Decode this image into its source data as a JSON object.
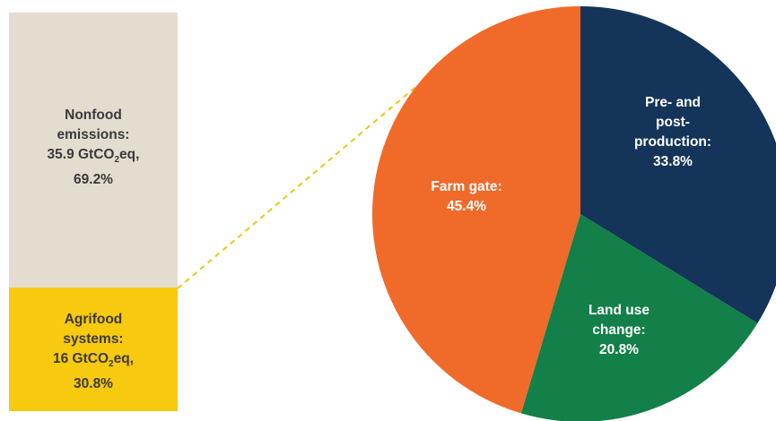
{
  "chart_data": [
    {
      "type": "bar",
      "categories": [
        "Agrifood systems",
        "Nonfood emissions"
      ],
      "values": [
        30.8,
        69.2
      ],
      "unit": "%",
      "stacked": true,
      "colors": [
        "#f7c90f",
        "#e3ddd0"
      ],
      "segments": [
        {
          "name": "Nonfood emissions",
          "value_gtco2eq": 35.9,
          "percent": 69.2,
          "color": "#e3ddd0",
          "label": {
            "l1": "Nonfood",
            "l2": "emissions:",
            "l3a": "35.9 GtCO",
            "l3sub": "2",
            "l3b": "eq,",
            "l4": "69.2%"
          }
        },
        {
          "name": "Agrifood systems",
          "value_gtco2eq": 16,
          "percent": 30.8,
          "color": "#f7c90f",
          "label": {
            "l1": "Agrifood",
            "l2": "systems:",
            "l3a": "16 GtCO",
            "l3sub": "2",
            "l3b": "eq,",
            "l4": "30.8%"
          }
        }
      ]
    },
    {
      "type": "pie",
      "categories": [
        "Pre- and post-production",
        "Land use change",
        "Farm gate"
      ],
      "values": [
        33.8,
        20.8,
        45.4
      ],
      "unit": "%",
      "colors": [
        "#14345a",
        "#128048",
        "#f06a2a"
      ],
      "slices": [
        {
          "name": "Pre- and post-production",
          "value": 33.8,
          "color": "#14345a",
          "label_lines": [
            "Pre- and",
            "post-",
            "production:",
            "33.8%"
          ]
        },
        {
          "name": "Land use change",
          "value": 20.8,
          "color": "#128048",
          "label_lines": [
            "Land use",
            "change:",
            "20.8%"
          ]
        },
        {
          "name": "Farm gate",
          "value": 45.4,
          "color": "#f06a2a",
          "label_lines": [
            "Farm gate:",
            "45.4%"
          ]
        }
      ]
    }
  ]
}
